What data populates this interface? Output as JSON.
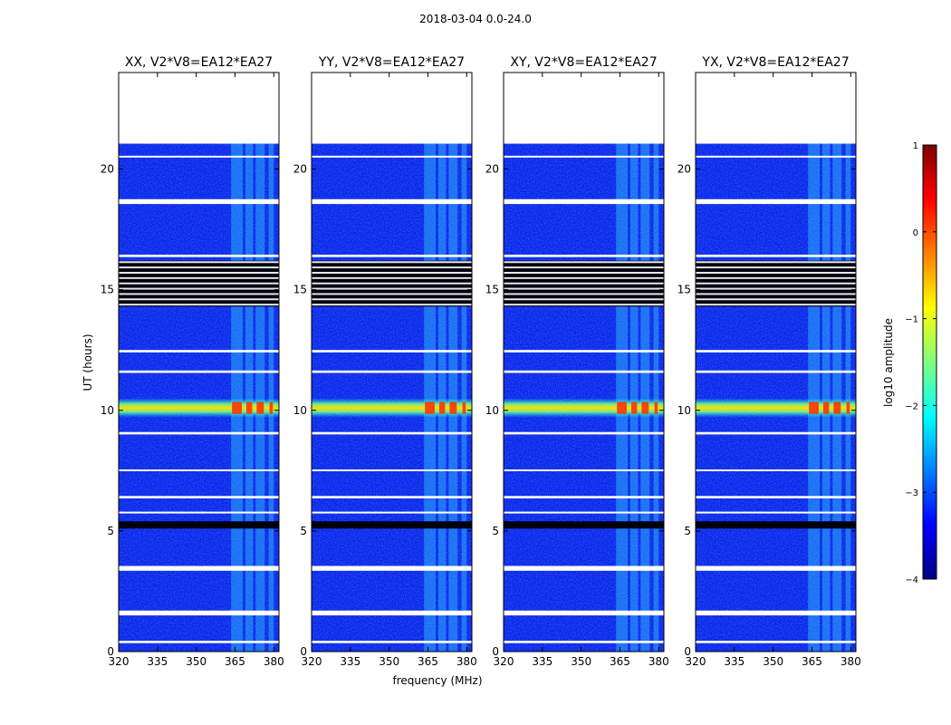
{
  "figure": {
    "title": "2018-03-04 0.0-24.0"
  },
  "chart_data": {
    "type": "heatmap",
    "x_label": "frequency (MHz)",
    "y_label": "UT (hours)",
    "xlim": [
      320,
      382
    ],
    "ylim": [
      0,
      24
    ],
    "x_ticks": [
      320,
      335,
      350,
      365,
      380
    ],
    "y_ticks": [
      0,
      5,
      10,
      15,
      20
    ],
    "data_end_hour": 21.05,
    "panels": [
      {
        "title": "XX, V2*V8=EA12*EA27"
      },
      {
        "title": "YY, V2*V8=EA12*EA27"
      },
      {
        "title": "XY, V2*V8=EA12*EA27"
      },
      {
        "title": "YX, V2*V8=EA12*EA27"
      }
    ],
    "colorbar": {
      "label": "log10 amplitude",
      "min": -4,
      "max": 1,
      "ticks": [
        1,
        0,
        -1,
        -2,
        -3,
        -4
      ],
      "tick_labels": [
        "1",
        "0",
        "−1",
        "−2",
        "−3",
        "−4"
      ],
      "colormap": [
        "#00007f",
        "#0000ff",
        "#007fff",
        "#00ffff",
        "#7fff7f",
        "#ffff00",
        "#ff7f00",
        "#ff0000",
        "#7f0000"
      ]
    },
    "rfi_bands_mhz": [
      [
        363.5,
        368.0
      ],
      [
        369.0,
        372.0
      ],
      [
        373.0,
        376.5
      ],
      [
        378.0,
        380.0
      ]
    ],
    "strong_rfi_hours": [
      9.7,
      10.5
    ],
    "flagged_gaps_hours": [
      [
        0.35,
        0.45
      ],
      [
        1.5,
        1.7
      ],
      [
        3.35,
        3.55
      ],
      [
        5.75,
        5.8
      ],
      [
        6.35,
        6.45
      ],
      [
        7.5,
        7.55
      ],
      [
        9.0,
        9.1
      ],
      [
        11.55,
        11.65
      ],
      [
        12.4,
        12.5
      ],
      [
        16.35,
        16.45
      ],
      [
        18.55,
        18.75
      ],
      [
        20.5,
        20.55
      ]
    ],
    "dark_bands_hours": [
      [
        5.1,
        5.4
      ],
      [
        14.3,
        16.2
      ]
    ]
  }
}
